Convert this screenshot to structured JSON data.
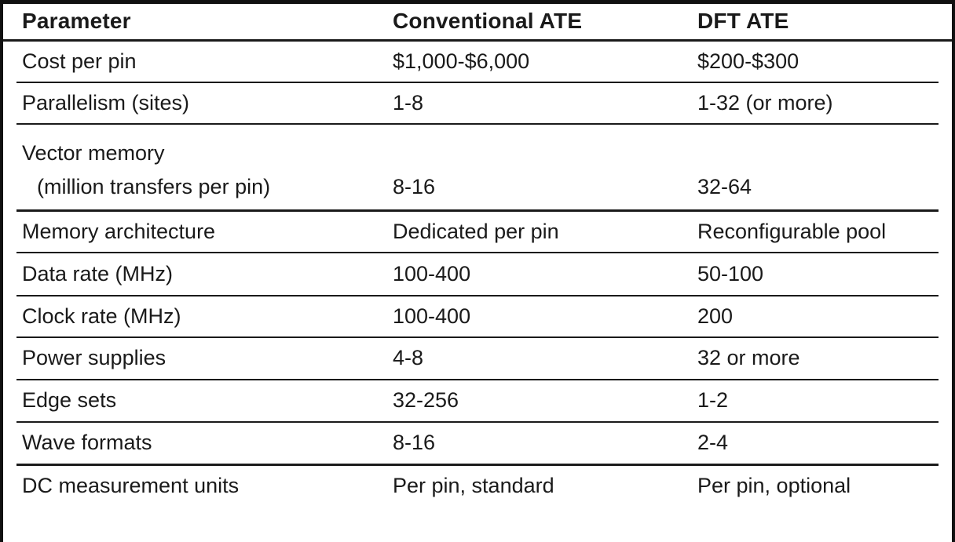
{
  "table": {
    "headers": {
      "parameter": "Parameter",
      "conventional": "Conventional ATE",
      "dft": "DFT ATE"
    },
    "rows": [
      {
        "parameter": "Cost per pin",
        "conventional": "$1,000-$6,000",
        "dft": "$200-$300"
      },
      {
        "parameter": "Parallelism (sites)",
        "conventional": "1-8",
        "dft": "1-32 (or more)"
      },
      {
        "parameter_line1": "Vector memory",
        "parameter_line2": "(million transfers per pin)",
        "conventional": "8-16",
        "dft": "32-64"
      },
      {
        "parameter": "Memory architecture",
        "conventional": "Dedicated per pin",
        "dft": "Reconfigurable pool"
      },
      {
        "parameter": "Data rate (MHz)",
        "conventional": "100-400",
        "dft": "50-100"
      },
      {
        "parameter": "Clock rate (MHz)",
        "conventional": "100-400",
        "dft": "200"
      },
      {
        "parameter": "Power supplies",
        "conventional": "4-8",
        "dft": "32 or more"
      },
      {
        "parameter": "Edge sets",
        "conventional": "32-256",
        "dft": "1-2"
      },
      {
        "parameter": "Wave formats",
        "conventional": "8-16",
        "dft": "2-4"
      },
      {
        "parameter": "DC measurement units",
        "conventional": "Per pin, standard",
        "dft": "Per pin, optional"
      }
    ],
    "colors": {
      "text": "#1a1a1a",
      "rule": "#1a1a1a",
      "border": "#111111",
      "background": "#ffffff"
    }
  }
}
